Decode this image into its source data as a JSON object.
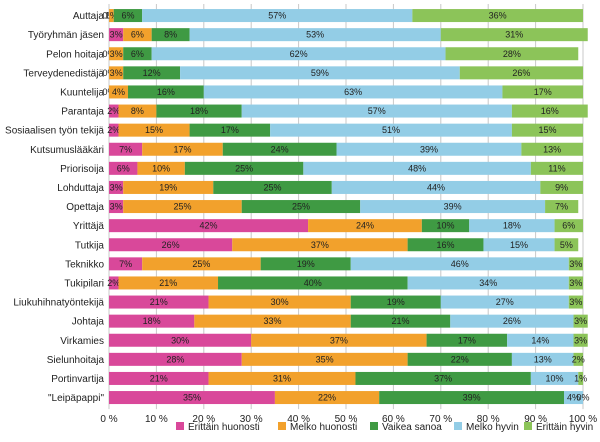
{
  "chart_data": {
    "type": "bar",
    "orientation": "horizontal",
    "stacked": true,
    "xlim": [
      0,
      100
    ],
    "x_ticks": [
      "0 %",
      "10 %",
      "20 %",
      "30 %",
      "40 %",
      "50 %",
      "60 %",
      "70 %",
      "80 %",
      "90 %",
      "100 %"
    ],
    "legend_position": "bottom",
    "categories": [
      "Auttaja",
      "Työryhmän jäsen",
      "Pelon hoitaja",
      "Terveydenedistäjä",
      "Kuuntelija",
      "Parantaja",
      "Sosiaalisen työn tekijä",
      "Kutsumuslääkäri",
      "Priorisoija",
      "Lohduttaja",
      "Opettaja",
      "Yrittäjä",
      "Tutkija",
      "Teknikko",
      "Tukipilari",
      "Liukuhihnatyöntekijä",
      "Johtaja",
      "Virkamies",
      "Sielunhoitaja",
      "Portinvartija",
      "\"Leipäpappi\""
    ],
    "series": [
      {
        "name": "Erittäin huonosti",
        "color": "#d9489a",
        "values": [
          0,
          3,
          0,
          0,
          0,
          2,
          2,
          7,
          6,
          3,
          3,
          42,
          26,
          7,
          2,
          21,
          18,
          30,
          28,
          21,
          35
        ],
        "labels": [
          "0%",
          "3%",
          "0%",
          "0%",
          "0%",
          "2%",
          "2%",
          "7%",
          "6%",
          "3%",
          "3%",
          "42%",
          "26%",
          "7%",
          "2%",
          "21%",
          "18%",
          "30%",
          "28%",
          "21%",
          "35%"
        ]
      },
      {
        "name": "Melko huonosti",
        "color": "#f2a12c",
        "values": [
          1,
          6,
          3,
          3,
          4,
          8,
          15,
          17,
          10,
          19,
          25,
          24,
          37,
          25,
          21,
          30,
          33,
          37,
          35,
          31,
          22
        ],
        "labels": [
          "1%",
          "6%",
          "3%",
          "3%",
          "4%",
          "8%",
          "15%",
          "17%",
          "10%",
          "19%",
          "25%",
          "24%",
          "37%",
          "25%",
          "21%",
          "30%",
          "33%",
          "37%",
          "35%",
          "31%",
          "22%"
        ]
      },
      {
        "name": "Vaikea sanoa",
        "color": "#3f9a43",
        "values": [
          6,
          8,
          6,
          12,
          16,
          18,
          17,
          24,
          25,
          25,
          25,
          10,
          16,
          19,
          40,
          19,
          21,
          17,
          22,
          37,
          39
        ],
        "labels": [
          "6%",
          "8%",
          "6%",
          "12%",
          "16%",
          "18%",
          "17%",
          "24%",
          "25%",
          "25%",
          "25%",
          "10%",
          "16%",
          "19%",
          "40%",
          "19%",
          "21%",
          "17%",
          "22%",
          "37%",
          "39%"
        ]
      },
      {
        "name": "Melko hyvin",
        "color": "#93cde6",
        "values": [
          57,
          53,
          62,
          59,
          63,
          57,
          51,
          39,
          48,
          44,
          39,
          18,
          15,
          46,
          34,
          27,
          26,
          14,
          13,
          10,
          4
        ],
        "labels": [
          "57%",
          "53%",
          "62%",
          "59%",
          "63%",
          "57%",
          "51%",
          "39%",
          "48%",
          "44%",
          "39%",
          "18%",
          "15%",
          "46%",
          "34%",
          "27%",
          "26%",
          "14%",
          "13%",
          "10%",
          "4%"
        ]
      },
      {
        "name": "Erittäin hyvin",
        "color": "#8cc459",
        "values": [
          36,
          31,
          28,
          26,
          17,
          16,
          15,
          13,
          11,
          9,
          7,
          6,
          5,
          3,
          3,
          3,
          3,
          3,
          2,
          1,
          0
        ],
        "labels": [
          "36%",
          "31%",
          "28%",
          "26%",
          "17%",
          "16%",
          "15%",
          "13%",
          "11%",
          "9%",
          "7%",
          "6%",
          "5%",
          "3%",
          "3%",
          "3%",
          "3%",
          "3%",
          "2%",
          "1%",
          "0%"
        ]
      }
    ]
  }
}
